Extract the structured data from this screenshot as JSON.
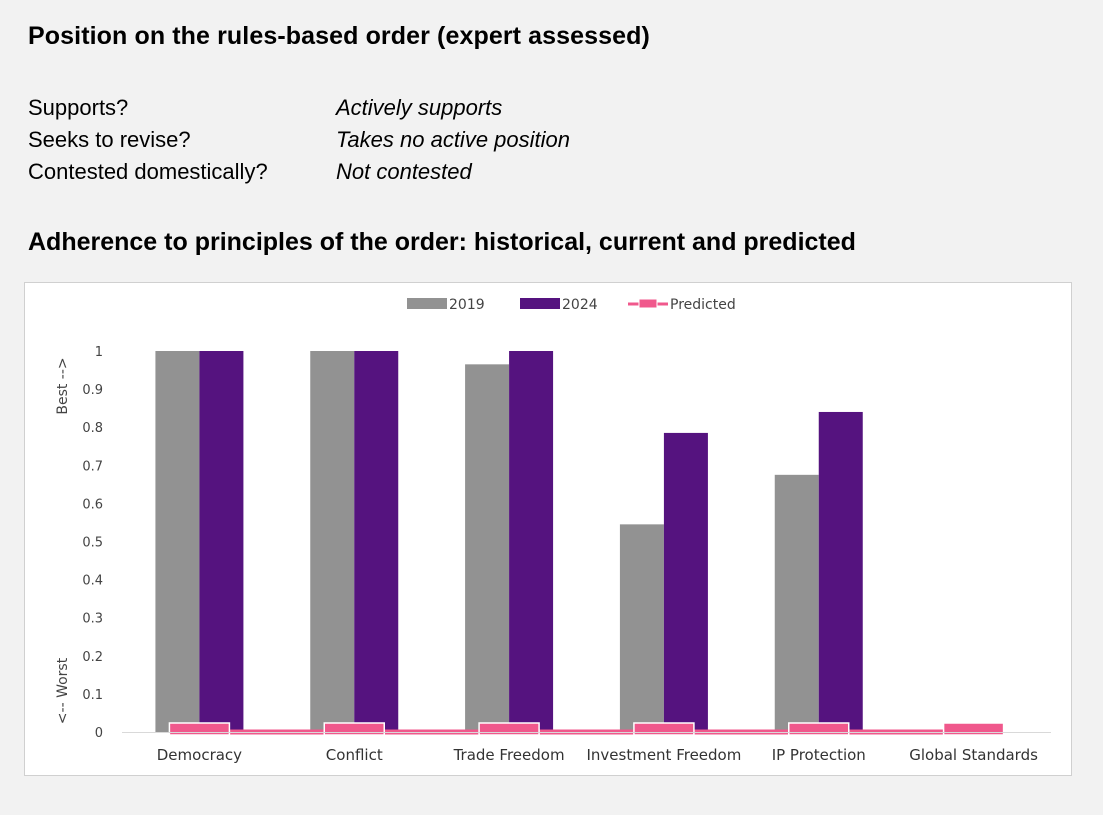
{
  "header": {
    "title": "Position on the rules-based order (expert assessed)"
  },
  "position": [
    {
      "question": "Supports?",
      "answer": "Actively supports"
    },
    {
      "question": "Seeks to revise?",
      "answer": "Takes no active position"
    },
    {
      "question": "Contested domestically?",
      "answer": "Not contested"
    }
  ],
  "section_title": "Adherence to principles of the order: historical, current and predicted",
  "chart_data": {
    "type": "bar",
    "categories": [
      "Democracy",
      "Conflict",
      "Trade Freedom",
      "Investment Freedom",
      "IP Protection",
      "Global Standards"
    ],
    "series": [
      {
        "name": "2019",
        "values": [
          1.0,
          1.0,
          0.965,
          0.545,
          0.675,
          0
        ],
        "color": "#929292"
      },
      {
        "name": "2024",
        "values": [
          1.0,
          1.0,
          1.0,
          0.785,
          0.84,
          0
        ],
        "color": "#55137f"
      },
      {
        "name": "Predicted",
        "values": [
          0,
          0,
          0,
          0,
          0,
          0
        ],
        "color": "#f0588c",
        "style": "line-with-markers"
      }
    ],
    "ylim": [
      0,
      1
    ],
    "yticks": [
      "0",
      "0.1",
      "0.2",
      "0.3",
      "0.4",
      "0.5",
      "0.6",
      "0.7",
      "0.8",
      "0.9",
      "1"
    ],
    "ylabel_top": "Best -->",
    "ylabel_bottom": "<-- Worst",
    "legend_position": "top-center",
    "grid": false
  }
}
